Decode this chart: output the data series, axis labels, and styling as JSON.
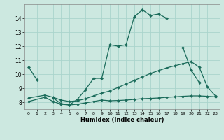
{
  "xlabel": "Humidex (Indice chaleur)",
  "background_color": "#cce8e0",
  "grid_color": "#aad4cc",
  "line_color": "#1a6b5a",
  "xlim": [
    -0.5,
    23.5
  ],
  "ylim": [
    7.5,
    15.0
  ],
  "xticks": [
    0,
    1,
    2,
    3,
    4,
    5,
    6,
    7,
    8,
    9,
    10,
    11,
    12,
    13,
    14,
    15,
    16,
    17,
    18,
    19,
    20,
    21,
    22,
    23
  ],
  "yticks": [
    8,
    9,
    10,
    11,
    12,
    13,
    14
  ],
  "line1_segments": [
    {
      "x": [
        0,
        1
      ],
      "y": [
        10.5,
        9.6
      ]
    },
    {
      "x": [
        3,
        4,
        5,
        6,
        7,
        8,
        9,
        10,
        11,
        12,
        13,
        14,
        15,
        16,
        17
      ],
      "y": [
        8.3,
        7.9,
        7.8,
        8.2,
        8.9,
        9.7,
        9.7,
        12.1,
        12.0,
        12.1,
        14.1,
        14.6,
        14.2,
        14.3,
        14.0
      ]
    },
    {
      "x": [
        19,
        20,
        21
      ],
      "y": [
        11.9,
        10.3,
        9.4
      ]
    },
    {
      "x": [
        23
      ],
      "y": [
        8.4
      ]
    }
  ],
  "line2_x": [
    0,
    2,
    3,
    4,
    5,
    6,
    7,
    8,
    9,
    10,
    11,
    12,
    13,
    14,
    15,
    16,
    17,
    18,
    19,
    20,
    21,
    22,
    23
  ],
  "line2_y": [
    8.3,
    8.5,
    8.35,
    8.15,
    8.05,
    8.1,
    8.25,
    8.45,
    8.65,
    8.8,
    9.05,
    9.3,
    9.55,
    9.8,
    10.05,
    10.25,
    10.45,
    10.6,
    10.75,
    10.9,
    10.5,
    9.1,
    8.45
  ],
  "line3_x": [
    0,
    2,
    3,
    4,
    5,
    6,
    7,
    8,
    9,
    10,
    11,
    12,
    13,
    14,
    15,
    16,
    17,
    18,
    19,
    20,
    21,
    22,
    23
  ],
  "line3_y": [
    8.05,
    8.35,
    8.05,
    7.85,
    7.8,
    7.85,
    7.95,
    8.05,
    8.15,
    8.1,
    8.12,
    8.15,
    8.2,
    8.25,
    8.27,
    8.3,
    8.35,
    8.38,
    8.42,
    8.45,
    8.45,
    8.42,
    8.38
  ]
}
